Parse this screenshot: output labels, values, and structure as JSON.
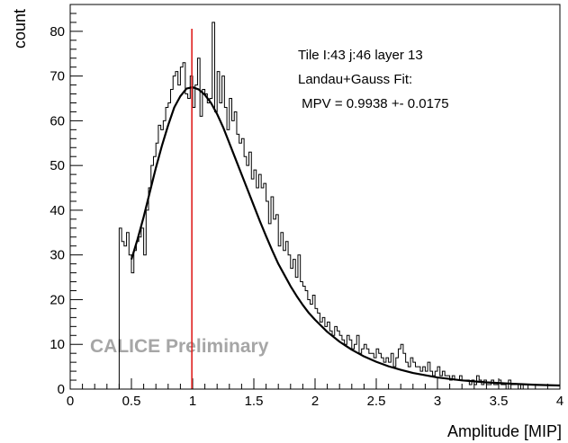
{
  "chart_data": {
    "type": "histogram",
    "xlabel": "Amplitude [MIP]",
    "ylabel": "count",
    "xlim": [
      0,
      4
    ],
    "ylim": [
      0,
      86
    ],
    "x_ticks": [
      0,
      0.5,
      1,
      1.5,
      2,
      2.5,
      3,
      3.5,
      4
    ],
    "x_tick_labels": [
      "0",
      "0.5",
      "1",
      "1.5",
      "2",
      "2.5",
      "3",
      "3.5",
      "4"
    ],
    "y_ticks": [
      0,
      10,
      20,
      30,
      40,
      50,
      60,
      70,
      80
    ],
    "y_tick_labels": [
      "0",
      "10",
      "20",
      "30",
      "40",
      "50",
      "60",
      "70",
      "80"
    ],
    "grid": false,
    "legend": {
      "placement": "top-right",
      "lines": [
        "Tile I:43 j:46 layer 13",
        "Landau+Gauss Fit:",
        " MPV = 0.9938 +- 0.0175"
      ]
    },
    "watermark": "CALICE Preliminary",
    "mpv_line": {
      "x": 0.9938,
      "color": "#e0201e"
    },
    "colors": {
      "histogram": "#000000",
      "fit": "#000000",
      "mpv_line": "#e0201e",
      "watermark": "#a6a6a6"
    },
    "histogram": {
      "bin_edges_start": 0.4,
      "bin_width": 0.02,
      "counts": [
        36,
        33,
        32,
        35,
        30,
        26,
        31,
        33,
        34,
        36,
        30,
        40,
        45,
        50,
        52,
        55,
        59,
        58,
        60,
        63,
        64,
        67,
        70,
        71,
        68,
        72,
        73,
        66,
        65,
        70,
        63,
        68,
        74,
        61,
        67,
        66,
        64,
        65,
        82,
        62,
        71,
        64,
        70,
        63,
        58,
        65,
        60,
        62,
        57,
        55,
        56,
        52,
        50,
        53,
        47,
        49,
        45,
        48,
        45,
        46,
        42,
        37,
        43,
        38,
        39,
        32,
        35,
        31,
        33,
        30,
        27,
        29,
        25,
        30,
        24,
        23,
        22,
        20,
        19,
        21,
        18,
        17,
        15,
        16,
        14,
        15,
        13,
        12,
        14,
        13,
        12,
        11,
        10,
        12,
        11,
        9,
        10,
        12,
        8,
        9,
        10,
        9,
        8,
        8,
        7,
        9,
        8,
        7,
        6,
        7,
        6,
        8,
        5,
        7,
        9,
        10,
        8,
        6,
        5,
        7,
        6,
        5,
        5,
        4,
        5,
        4,
        6,
        4,
        3,
        4,
        5,
        3,
        4,
        3,
        3,
        2,
        3,
        2,
        2,
        3,
        2,
        2,
        2,
        1,
        2,
        1,
        3,
        2,
        1,
        2,
        1,
        1,
        2,
        1,
        1,
        2,
        1,
        1,
        0,
        2,
        1,
        1,
        1,
        0,
        1,
        1,
        1,
        0
      ]
    },
    "fit": {
      "label": "Landau+Gauss Fit",
      "x": [
        0.5,
        0.55,
        0.6,
        0.65,
        0.7,
        0.75,
        0.8,
        0.85,
        0.9,
        0.95,
        1.0,
        1.05,
        1.1,
        1.15,
        1.2,
        1.25,
        1.3,
        1.35,
        1.4,
        1.45,
        1.5,
        1.55,
        1.6,
        1.65,
        1.7,
        1.75,
        1.8,
        1.85,
        1.9,
        1.95,
        2.0,
        2.1,
        2.2,
        2.3,
        2.4,
        2.5,
        2.6,
        2.7,
        2.8,
        2.9,
        3.0,
        3.2,
        3.4,
        3.6,
        3.8,
        4.0
      ],
      "y": [
        29,
        33.5,
        38.5,
        44,
        49.5,
        54.5,
        59,
        63,
        65.5,
        67.2,
        67.5,
        67,
        65.8,
        64,
        61.5,
        58.5,
        55,
        51.5,
        48,
        44.5,
        41,
        37.5,
        34.2,
        31,
        28,
        25.5,
        23,
        20.8,
        18.8,
        17,
        15.5,
        12.8,
        10.6,
        8.8,
        7.3,
        6.1,
        5.1,
        4.3,
        3.6,
        3.1,
        2.6,
        1.95,
        1.5,
        1.2,
        0.95,
        0.8
      ]
    }
  }
}
